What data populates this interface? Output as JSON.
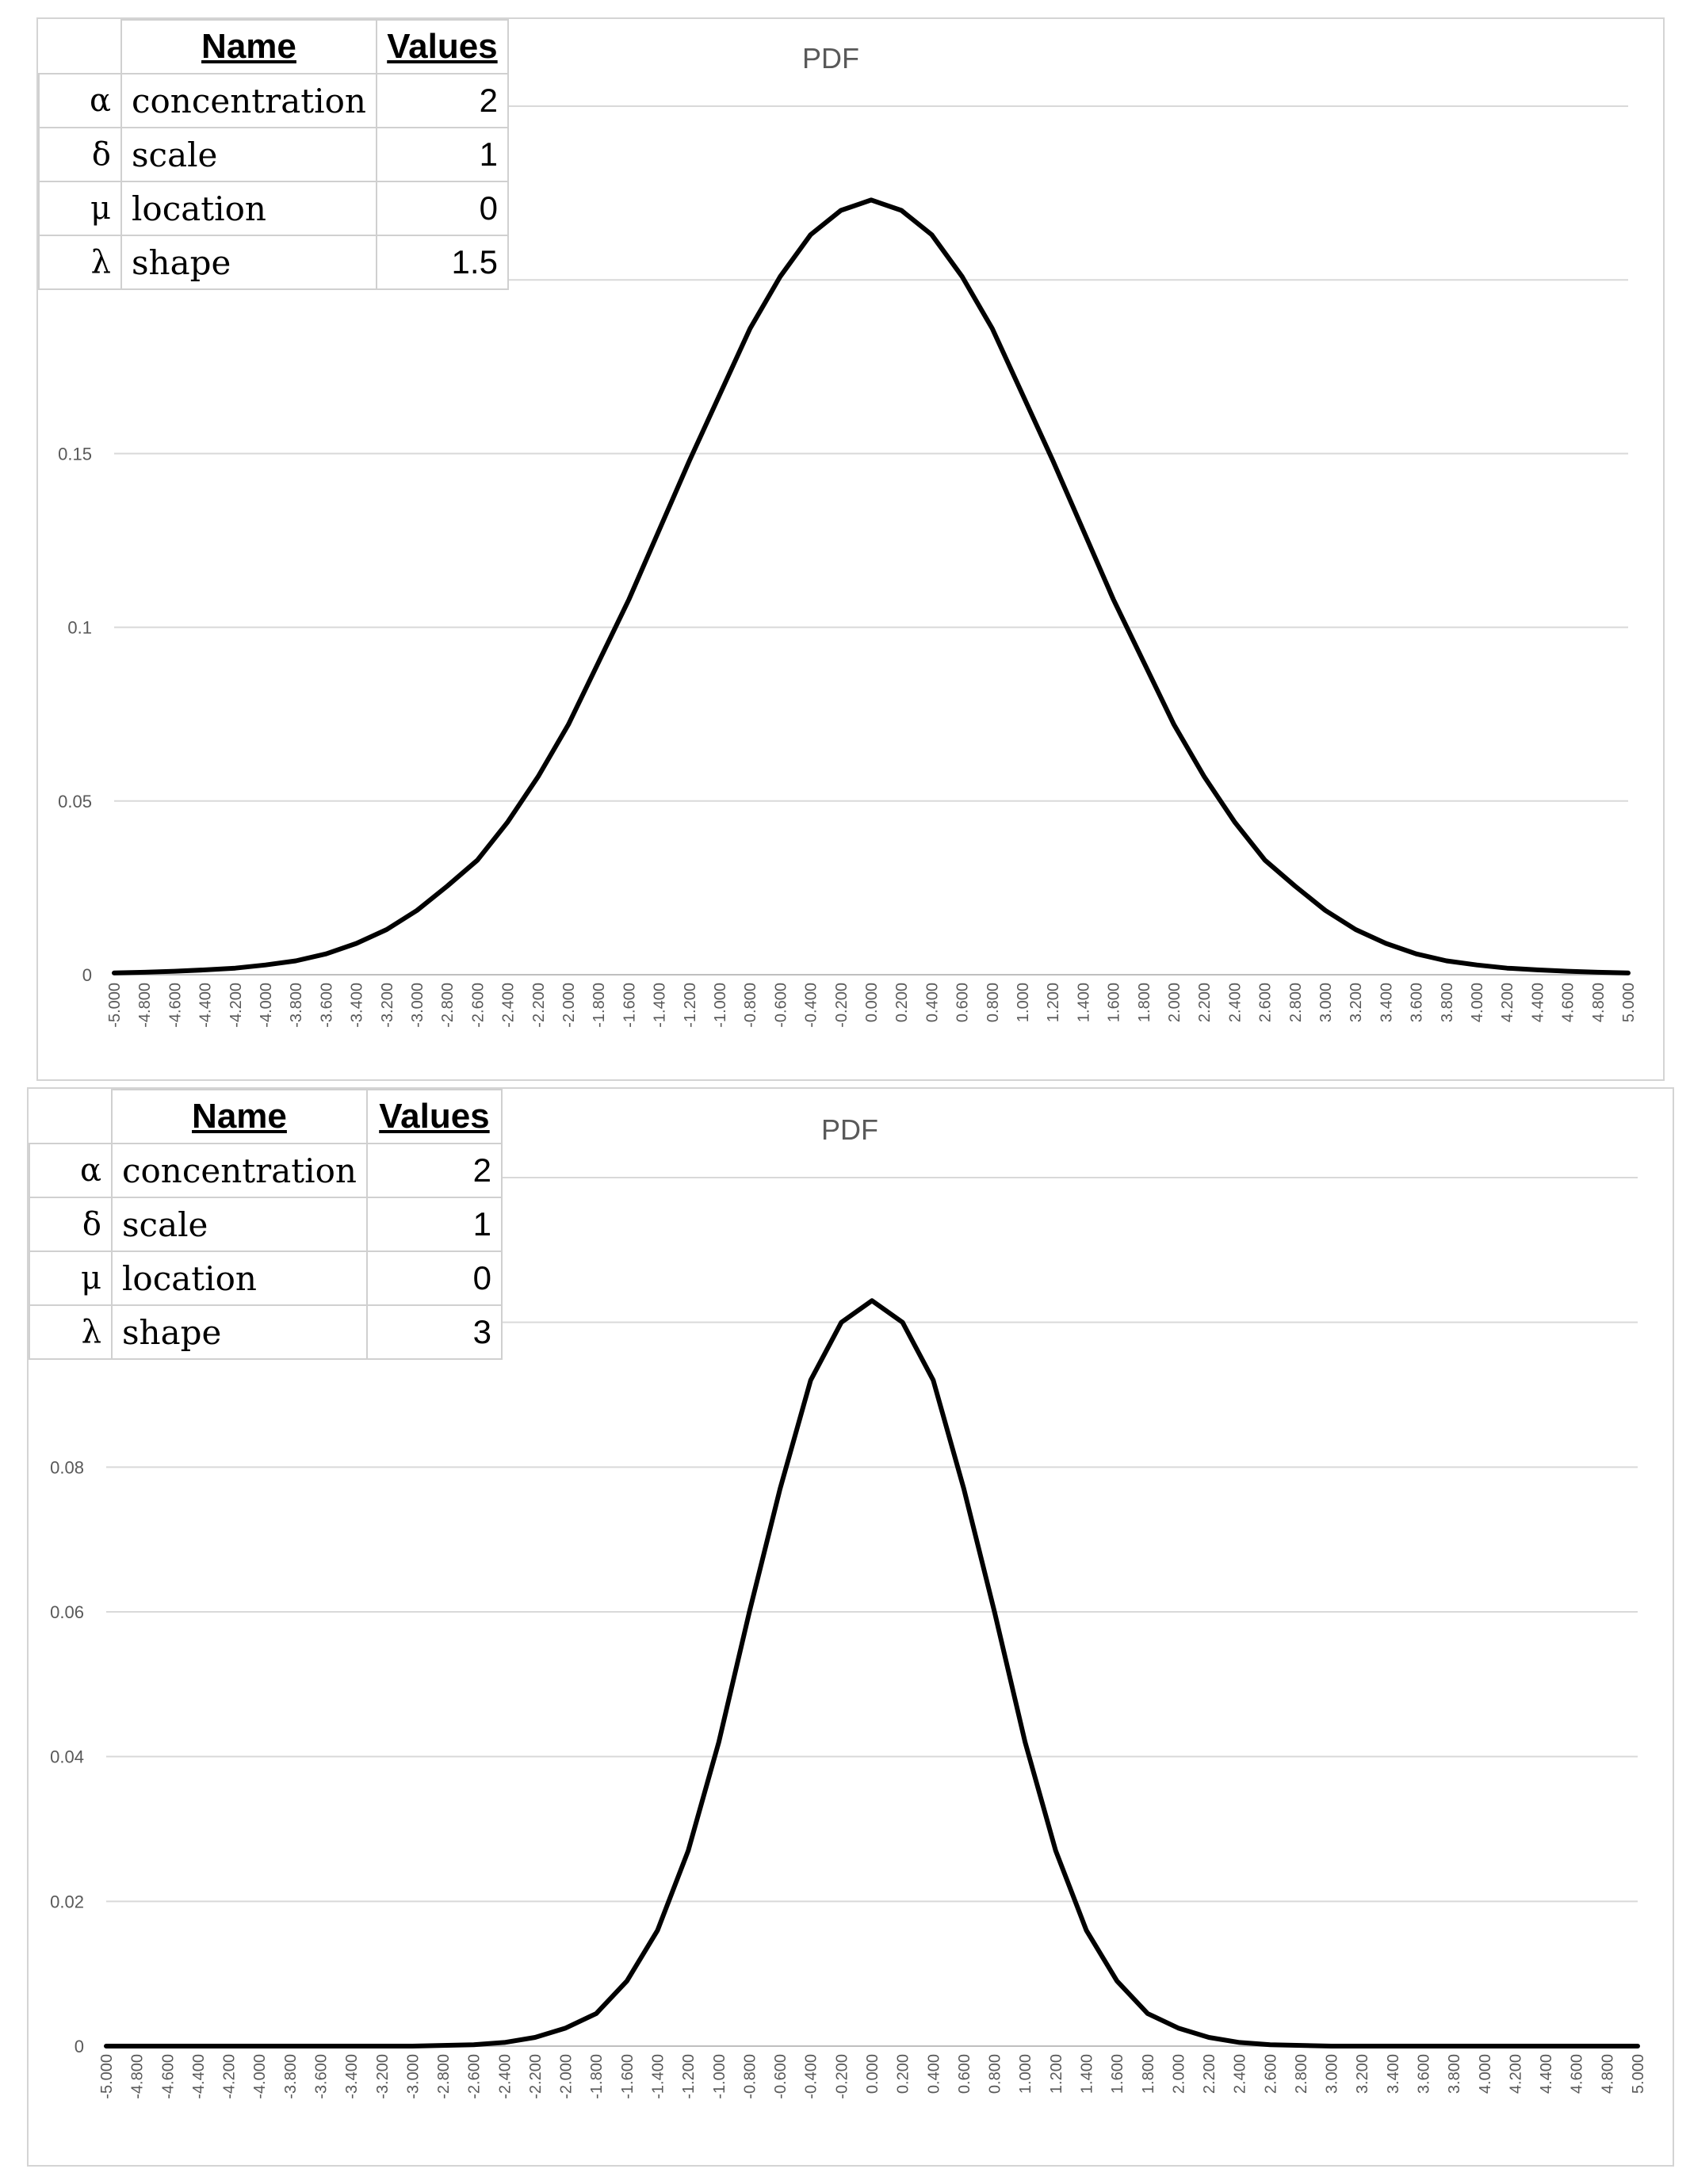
{
  "charts": [
    {
      "title": "PDF",
      "table": {
        "headers": [
          "Name",
          "Values"
        ],
        "rows": [
          {
            "symbol": "α",
            "name": "concentration",
            "value": "2"
          },
          {
            "symbol": "δ",
            "name": "scale",
            "value": "1"
          },
          {
            "symbol": "μ",
            "name": "location",
            "value": "0"
          },
          {
            "symbol": "λ",
            "name": "shape",
            "value": "1.5"
          }
        ]
      }
    },
    {
      "title": "PDF",
      "table": {
        "headers": [
          "Name",
          "Values"
        ],
        "rows": [
          {
            "symbol": "α",
            "name": "concentration",
            "value": "2"
          },
          {
            "symbol": "δ",
            "name": "scale",
            "value": "1"
          },
          {
            "symbol": "μ",
            "name": "location",
            "value": "0"
          },
          {
            "symbol": "λ",
            "name": "shape",
            "value": "3"
          }
        ]
      }
    }
  ],
  "colors": {
    "line": "#000000",
    "grid": "#d9d9d9",
    "text": "#595959",
    "border": "#d4d4d4"
  },
  "chart_data": [
    {
      "type": "line",
      "title": "PDF",
      "xlabel": "",
      "ylabel": "",
      "x": {
        "start": -5.0,
        "end": 5.0,
        "step": 0.2,
        "format": "fixed3"
      },
      "yticks": [
        "0",
        "0.05",
        "0.1",
        "0.15"
      ],
      "ytick_values": [
        0,
        0.05,
        0.1,
        0.15
      ],
      "ylim": [
        0,
        0.25
      ],
      "grid": true,
      "legend": "none",
      "series": [
        {
          "name": "PDF",
          "points": [
            [
              -5.0,
              0.0005
            ],
            [
              -4.8,
              0.0007
            ],
            [
              -4.6,
              0.001
            ],
            [
              -4.4,
              0.0014
            ],
            [
              -4.2,
              0.0019
            ],
            [
              -4.0,
              0.0028
            ],
            [
              -3.8,
              0.004
            ],
            [
              -3.6,
              0.006
            ],
            [
              -3.4,
              0.009
            ],
            [
              -3.2,
              0.013
            ],
            [
              -3.0,
              0.0185
            ],
            [
              -2.8,
              0.0255
            ],
            [
              -2.6,
              0.033
            ],
            [
              -2.4,
              0.044
            ],
            [
              -2.2,
              0.057
            ],
            [
              -2.0,
              0.072
            ],
            [
              -1.8,
              0.09
            ],
            [
              -1.6,
              0.108
            ],
            [
              -1.4,
              0.128
            ],
            [
              -1.2,
              0.148
            ],
            [
              -1.0,
              0.167
            ],
            [
              -0.8,
              0.186
            ],
            [
              -0.6,
              0.201
            ],
            [
              -0.4,
              0.213
            ],
            [
              -0.2,
              0.22
            ],
            [
              0.0,
              0.223
            ],
            [
              0.2,
              0.22
            ],
            [
              0.4,
              0.213
            ],
            [
              0.6,
              0.201
            ],
            [
              0.8,
              0.186
            ],
            [
              1.0,
              0.167
            ],
            [
              1.2,
              0.148
            ],
            [
              1.4,
              0.128
            ],
            [
              1.6,
              0.108
            ],
            [
              1.8,
              0.09
            ],
            [
              2.0,
              0.072
            ],
            [
              2.2,
              0.057
            ],
            [
              2.4,
              0.044
            ],
            [
              2.6,
              0.033
            ],
            [
              2.8,
              0.0255
            ],
            [
              3.0,
              0.0185
            ],
            [
              3.2,
              0.013
            ],
            [
              3.4,
              0.009
            ],
            [
              3.6,
              0.006
            ],
            [
              3.8,
              0.004
            ],
            [
              4.0,
              0.0028
            ],
            [
              4.2,
              0.0019
            ],
            [
              4.4,
              0.0014
            ],
            [
              4.6,
              0.001
            ],
            [
              4.8,
              0.0007
            ],
            [
              5.0,
              0.0005
            ]
          ]
        }
      ]
    },
    {
      "type": "line",
      "title": "PDF",
      "xlabel": "",
      "ylabel": "",
      "x": {
        "start": -5.0,
        "end": 5.0,
        "step": 0.2,
        "format": "fixed3"
      },
      "yticks": [
        "0",
        "0.02",
        "0.04",
        "0.06",
        "0.08"
      ],
      "ytick_values": [
        0,
        0.02,
        0.04,
        0.06,
        0.08
      ],
      "ylim": [
        0,
        0.12
      ],
      "grid": true,
      "legend": "none",
      "series": [
        {
          "name": "PDF",
          "points": [
            [
              -5.0,
              0.0
            ],
            [
              -4.8,
              0.0
            ],
            [
              -4.6,
              0.0
            ],
            [
              -4.4,
              0.0
            ],
            [
              -4.2,
              0.0
            ],
            [
              -4.0,
              0.0
            ],
            [
              -3.8,
              0.0
            ],
            [
              -3.6,
              0.0
            ],
            [
              -3.4,
              0.0
            ],
            [
              -3.2,
              0.0
            ],
            [
              -3.0,
              0.0
            ],
            [
              -2.8,
              0.0001
            ],
            [
              -2.6,
              0.0002
            ],
            [
              -2.4,
              0.0005
            ],
            [
              -2.2,
              0.0012
            ],
            [
              -2.0,
              0.0025
            ],
            [
              -1.8,
              0.0045
            ],
            [
              -1.6,
              0.009
            ],
            [
              -1.4,
              0.016
            ],
            [
              -1.2,
              0.027
            ],
            [
              -1.0,
              0.042
            ],
            [
              -0.8,
              0.06
            ],
            [
              -0.6,
              0.077
            ],
            [
              -0.4,
              0.092
            ],
            [
              -0.2,
              0.1
            ],
            [
              0.0,
              0.103
            ],
            [
              0.2,
              0.1
            ],
            [
              0.4,
              0.092
            ],
            [
              0.6,
              0.077
            ],
            [
              0.8,
              0.06
            ],
            [
              1.0,
              0.042
            ],
            [
              1.2,
              0.027
            ],
            [
              1.4,
              0.016
            ],
            [
              1.6,
              0.009
            ],
            [
              1.8,
              0.0045
            ],
            [
              2.0,
              0.0025
            ],
            [
              2.2,
              0.0012
            ],
            [
              2.4,
              0.0005
            ],
            [
              2.6,
              0.0002
            ],
            [
              2.8,
              0.0001
            ],
            [
              3.0,
              0.0
            ],
            [
              3.2,
              0.0
            ],
            [
              3.4,
              0.0
            ],
            [
              3.6,
              0.0
            ],
            [
              3.8,
              0.0
            ],
            [
              4.0,
              0.0
            ],
            [
              4.2,
              0.0
            ],
            [
              4.4,
              0.0
            ],
            [
              4.6,
              0.0
            ],
            [
              4.8,
              0.0
            ],
            [
              5.0,
              0.0
            ]
          ]
        }
      ]
    }
  ]
}
